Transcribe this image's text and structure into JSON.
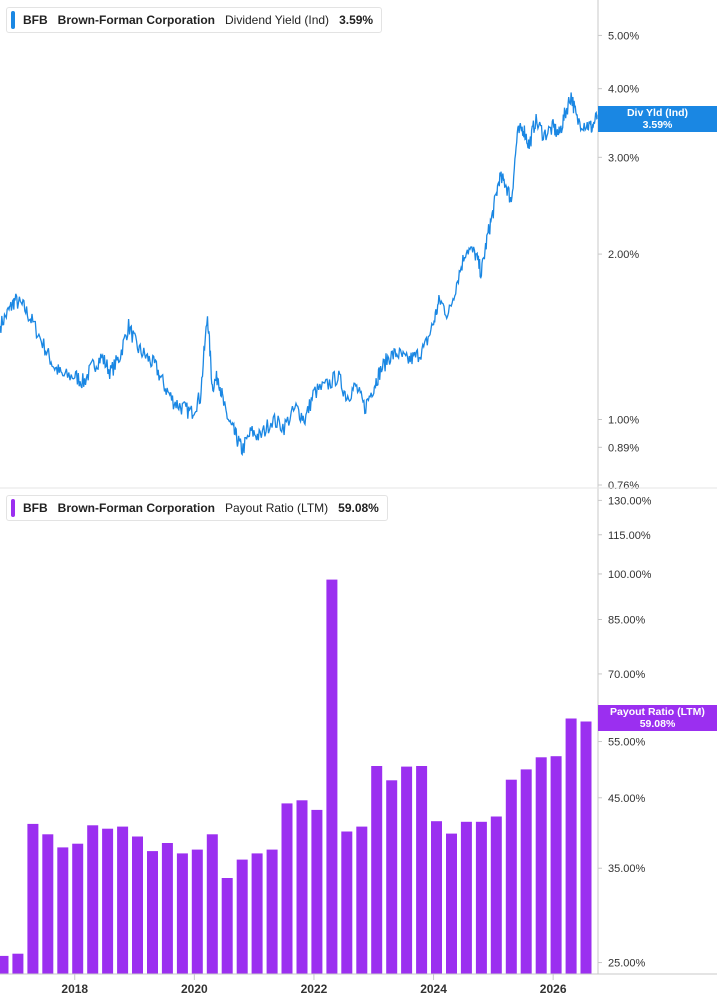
{
  "colors": {
    "yield_line": "#1a87e3",
    "payout_bar": "#9b2ff0",
    "axis": "#c8c8c8",
    "text": "#333333"
  },
  "top_legend": {
    "ticker": "BFB",
    "company": "Brown-Forman Corporation",
    "metric": "Dividend Yield (Ind)",
    "value": "3.59%"
  },
  "bottom_legend": {
    "ticker": "BFB",
    "company": "Brown-Forman Corporation",
    "metric": "Payout Ratio (LTM)",
    "value": "59.08%"
  },
  "top_flag": {
    "line1": "Div Yld (Ind)",
    "line2": "3.59%"
  },
  "bottom_flag": {
    "line1": "Payout Ratio (LTM)",
    "line2": "59.08%"
  },
  "chart_data": [
    {
      "type": "line",
      "series": [
        {
          "name": "Dividend Yield (Ind)"
        }
      ],
      "scale": "log",
      "ylim": [
        0.76,
        5.8
      ],
      "xlim": [
        2016.75,
        2026.75
      ],
      "y_ticks": [
        {
          "value": 5.0,
          "label": "5.00%"
        },
        {
          "value": 4.0,
          "label": "4.00%"
        },
        {
          "value": 3.0,
          "label": "3.00%"
        },
        {
          "value": 2.0,
          "label": "2.00%"
        },
        {
          "value": 1.0,
          "label": "1.00%"
        },
        {
          "value": 0.89,
          "label": "0.89%"
        },
        {
          "value": 0.76,
          "label": "0.76%"
        }
      ],
      "points": [
        [
          2016.75,
          1.48
        ],
        [
          2016.9,
          1.58
        ],
        [
          2017.0,
          1.65
        ],
        [
          2017.15,
          1.6
        ],
        [
          2017.3,
          1.5
        ],
        [
          2017.5,
          1.35
        ],
        [
          2017.65,
          1.25
        ],
        [
          2017.8,
          1.2
        ],
        [
          2018.0,
          1.2
        ],
        [
          2018.15,
          1.17
        ],
        [
          2018.3,
          1.25
        ],
        [
          2018.45,
          1.3
        ],
        [
          2018.6,
          1.22
        ],
        [
          2018.75,
          1.3
        ],
        [
          2018.9,
          1.48
        ],
        [
          2019.05,
          1.35
        ],
        [
          2019.2,
          1.3
        ],
        [
          2019.35,
          1.25
        ],
        [
          2019.5,
          1.15
        ],
        [
          2019.65,
          1.08
        ],
        [
          2019.8,
          1.05
        ],
        [
          2019.95,
          1.03
        ],
        [
          2020.1,
          1.1
        ],
        [
          2020.22,
          1.55
        ],
        [
          2020.3,
          1.15
        ],
        [
          2020.4,
          1.2
        ],
        [
          2020.5,
          1.05
        ],
        [
          2020.6,
          0.98
        ],
        [
          2020.7,
          0.93
        ],
        [
          2020.8,
          0.88
        ],
        [
          2020.95,
          0.95
        ],
        [
          2021.1,
          0.93
        ],
        [
          2021.3,
          1.0
        ],
        [
          2021.5,
          0.97
        ],
        [
          2021.7,
          1.05
        ],
        [
          2021.85,
          1.0
        ],
        [
          2022.0,
          1.12
        ],
        [
          2022.2,
          1.15
        ],
        [
          2022.4,
          1.2
        ],
        [
          2022.55,
          1.1
        ],
        [
          2022.7,
          1.15
        ],
        [
          2022.85,
          1.05
        ],
        [
          2023.0,
          1.15
        ],
        [
          2023.1,
          1.22
        ],
        [
          2023.25,
          1.3
        ],
        [
          2023.4,
          1.32
        ],
        [
          2023.55,
          1.28
        ],
        [
          2023.7,
          1.3
        ],
        [
          2023.85,
          1.35
        ],
        [
          2024.0,
          1.5
        ],
        [
          2024.1,
          1.65
        ],
        [
          2024.25,
          1.55
        ],
        [
          2024.4,
          1.8
        ],
        [
          2024.55,
          2.05
        ],
        [
          2024.7,
          2.0
        ],
        [
          2024.8,
          1.85
        ],
        [
          2024.9,
          2.15
        ],
        [
          2025.0,
          2.4
        ],
        [
          2025.1,
          2.75
        ],
        [
          2025.2,
          2.7
        ],
        [
          2025.3,
          2.5
        ],
        [
          2025.4,
          3.3
        ],
        [
          2025.5,
          3.4
        ],
        [
          2025.6,
          3.15
        ],
        [
          2025.7,
          3.5
        ],
        [
          2025.85,
          3.3
        ],
        [
          2026.0,
          3.4
        ],
        [
          2026.1,
          3.3
        ],
        [
          2026.2,
          3.6
        ],
        [
          2026.3,
          3.9
        ],
        [
          2026.4,
          3.5
        ],
        [
          2026.55,
          3.45
        ],
        [
          2026.65,
          3.4
        ],
        [
          2026.75,
          3.59
        ]
      ]
    },
    {
      "type": "bar",
      "series": [
        {
          "name": "Payout Ratio (LTM)"
        }
      ],
      "scale": "log",
      "ylim": [
        24.0,
        133.0
      ],
      "xlim": [
        2016.75,
        2026.75
      ],
      "y_ticks": [
        {
          "value": 130,
          "label": "130.00%"
        },
        {
          "value": 115,
          "label": "115.00%"
        },
        {
          "value": 100,
          "label": "100.00%"
        },
        {
          "value": 85,
          "label": "85.00%"
        },
        {
          "value": 70,
          "label": "70.00%"
        },
        {
          "value": 55,
          "label": "55.00%"
        },
        {
          "value": 45,
          "label": "45.00%"
        },
        {
          "value": 35,
          "label": "35.00%"
        },
        {
          "value": 25,
          "label": "25.00%"
        }
      ],
      "bars": [
        {
          "x": 2016.8,
          "value": 25.6
        },
        {
          "x": 2017.05,
          "value": 25.8
        },
        {
          "x": 2017.3,
          "value": 41.0
        },
        {
          "x": 2017.55,
          "value": 39.5
        },
        {
          "x": 2017.8,
          "value": 37.7
        },
        {
          "x": 2018.05,
          "value": 38.2
        },
        {
          "x": 2018.3,
          "value": 40.8
        },
        {
          "x": 2018.55,
          "value": 40.3
        },
        {
          "x": 2018.8,
          "value": 40.6
        },
        {
          "x": 2019.05,
          "value": 39.2
        },
        {
          "x": 2019.3,
          "value": 37.2
        },
        {
          "x": 2019.55,
          "value": 38.3
        },
        {
          "x": 2019.8,
          "value": 36.9
        },
        {
          "x": 2020.05,
          "value": 37.4
        },
        {
          "x": 2020.3,
          "value": 39.5
        },
        {
          "x": 2020.55,
          "value": 33.8
        },
        {
          "x": 2020.8,
          "value": 36.1
        },
        {
          "x": 2021.05,
          "value": 36.9
        },
        {
          "x": 2021.3,
          "value": 37.4
        },
        {
          "x": 2021.55,
          "value": 44.1
        },
        {
          "x": 2021.8,
          "value": 44.6
        },
        {
          "x": 2022.05,
          "value": 43.1
        },
        {
          "x": 2022.3,
          "value": 98.0
        },
        {
          "x": 2022.55,
          "value": 39.9
        },
        {
          "x": 2022.8,
          "value": 40.6
        },
        {
          "x": 2023.05,
          "value": 50.4
        },
        {
          "x": 2023.3,
          "value": 47.9
        },
        {
          "x": 2023.55,
          "value": 50.3
        },
        {
          "x": 2023.8,
          "value": 50.4
        },
        {
          "x": 2024.05,
          "value": 41.4
        },
        {
          "x": 2024.3,
          "value": 39.6
        },
        {
          "x": 2024.55,
          "value": 41.3
        },
        {
          "x": 2024.8,
          "value": 41.3
        },
        {
          "x": 2025.05,
          "value": 42.1
        },
        {
          "x": 2025.3,
          "value": 48.0
        },
        {
          "x": 2025.55,
          "value": 49.8
        },
        {
          "x": 2025.8,
          "value": 52.0
        },
        {
          "x": 2026.05,
          "value": 52.2
        },
        {
          "x": 2026.3,
          "value": 59.7
        },
        {
          "x": 2026.55,
          "value": 59.08
        }
      ]
    }
  ],
  "x_axis": {
    "ticks": [
      {
        "value": 2018,
        "label": "2018"
      },
      {
        "value": 2020,
        "label": "2020"
      },
      {
        "value": 2022,
        "label": "2022"
      },
      {
        "value": 2024,
        "label": "2024"
      },
      {
        "value": 2026,
        "label": "2026"
      }
    ]
  }
}
